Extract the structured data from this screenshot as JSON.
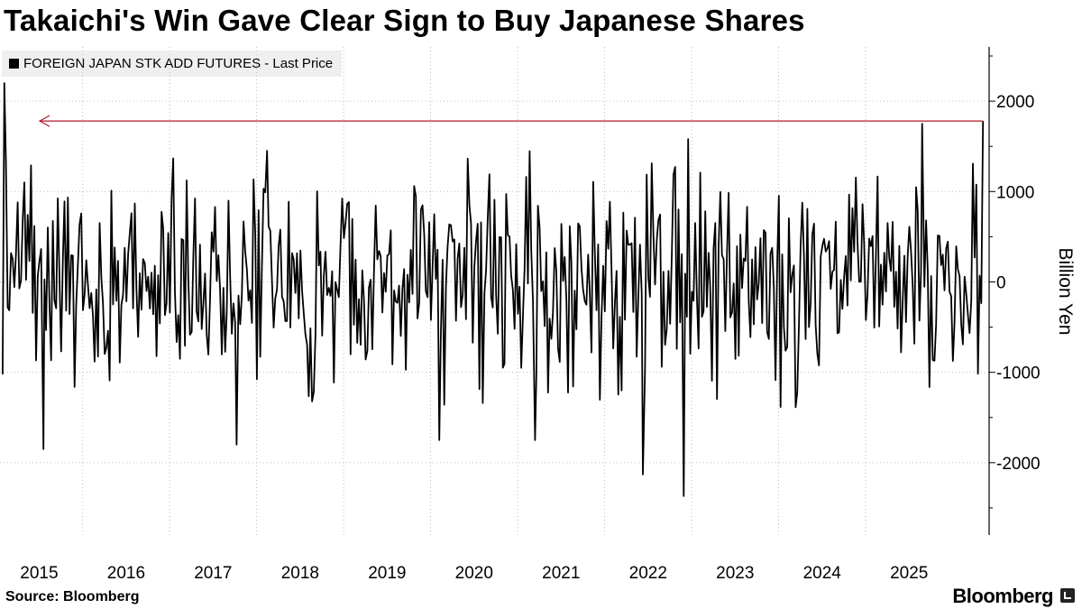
{
  "title": "Takaichi's Win Gave Clear Sign to Buy Japanese Shares",
  "legend": "FOREIGN JAPAN STK ADD FUTURES - Last Price",
  "source": "Source: Bloomberg",
  "brand": "Bloomberg",
  "colors": {
    "line": "#000000",
    "reference": "#b2182b",
    "grid": "#bdbdbd",
    "legend_bg": "#efefef"
  },
  "chart_data": {
    "type": "line",
    "title": "Takaichi's Win Gave Clear Sign to Buy Japanese Shares",
    "series_name": "FOREIGN JAPAN STK ADD FUTURES - Last Price",
    "ylabel": "Billion Yen",
    "y_axis_side": "right",
    "ylim": [
      -2800,
      2600
    ],
    "yticks": [
      -2000,
      -1000,
      0,
      1000,
      2000
    ],
    "ytick_labels": [
      "-2000",
      "-1000",
      "0",
      "1000",
      "2000"
    ],
    "xlim": [
      2014.55,
      2025.92
    ],
    "xticks": [
      2015,
      2016,
      2017,
      2018,
      2019,
      2020,
      2021,
      2022,
      2023,
      2024,
      2025
    ],
    "xtick_labels": [
      "2015",
      "2016",
      "2017",
      "2018",
      "2019",
      "2020",
      "2021",
      "2022",
      "2023",
      "2024",
      "2025"
    ],
    "grid": "vertical dotted at year boundaries",
    "reference_line": {
      "value": 1780,
      "description": "arrow pointing back to level of latest reading"
    },
    "notable_points": [
      {
        "x": 2014.6,
        "y": 2200
      },
      {
        "x": 2015.05,
        "y": -1850
      },
      {
        "x": 2017.27,
        "y": -1800
      },
      {
        "x": 2017.62,
        "y": 1450
      },
      {
        "x": 2019.6,
        "y": -1750
      },
      {
        "x": 2020.7,
        "y": -1750
      },
      {
        "x": 2021.94,
        "y": -2130
      },
      {
        "x": 2022.41,
        "y": -2370
      },
      {
        "x": 2022.46,
        "y": 1580
      },
      {
        "x": 2025.15,
        "y": 1750
      },
      {
        "x": 2025.85,
        "y": 1780
      }
    ]
  }
}
